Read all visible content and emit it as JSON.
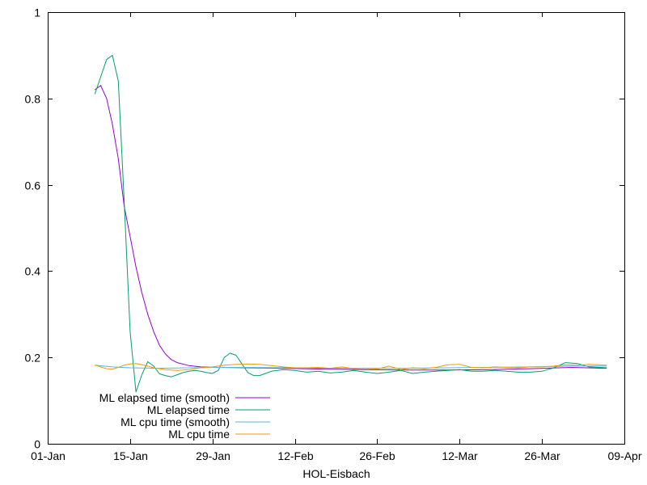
{
  "chart_data": {
    "type": "line",
    "title": "",
    "xlabel": "HOL-Eisbach",
    "ylabel": "",
    "x_ticks": [
      "01-Jan",
      "15-Jan",
      "29-Jan",
      "12-Feb",
      "26-Feb",
      "12-Mar",
      "26-Mar",
      "09-Apr"
    ],
    "y_ticks": [
      "0",
      "0.2",
      "0.4",
      "0.6",
      "0.8",
      "1"
    ],
    "xlim": [
      "2023-01-01",
      "2023-04-09"
    ],
    "ylim": [
      0,
      1
    ],
    "grid": false,
    "legend_position": "bottom-left",
    "series": [
      {
        "name": "ML elapsed time (smooth)",
        "color": "#9400d3",
        "points": [
          [
            "2023-01-09",
            0.82
          ],
          [
            "2023-01-10",
            0.83
          ],
          [
            "2023-01-11",
            0.8
          ],
          [
            "2023-01-12",
            0.74
          ],
          [
            "2023-01-13",
            0.66
          ],
          [
            "2023-01-14",
            0.55
          ],
          [
            "2023-01-15",
            0.48
          ],
          [
            "2023-01-16",
            0.41
          ],
          [
            "2023-01-17",
            0.35
          ],
          [
            "2023-01-18",
            0.3
          ],
          [
            "2023-01-19",
            0.26
          ],
          [
            "2023-01-20",
            0.228
          ],
          [
            "2023-01-21",
            0.208
          ],
          [
            "2023-01-22",
            0.195
          ],
          [
            "2023-01-23",
            0.188
          ],
          [
            "2023-01-25",
            0.181
          ],
          [
            "2023-01-27",
            0.178
          ],
          [
            "2023-01-30",
            0.177
          ],
          [
            "2023-02-04",
            0.176
          ],
          [
            "2023-02-10",
            0.175
          ],
          [
            "2023-02-17",
            0.173
          ],
          [
            "2023-02-24",
            0.172
          ],
          [
            "2023-03-03",
            0.171
          ],
          [
            "2023-03-10",
            0.171
          ],
          [
            "2023-03-17",
            0.172
          ],
          [
            "2023-03-24",
            0.174
          ],
          [
            "2023-03-31",
            0.177
          ],
          [
            "2023-04-06",
            0.175
          ]
        ]
      },
      {
        "name": "ML elapsed time",
        "color": "#009e73",
        "points": [
          [
            "2023-01-09",
            0.81
          ],
          [
            "2023-01-10",
            0.85
          ],
          [
            "2023-01-11",
            0.89
          ],
          [
            "2023-01-12",
            0.9
          ],
          [
            "2023-01-13",
            0.84
          ],
          [
            "2023-01-14",
            0.56
          ],
          [
            "2023-01-15",
            0.26
          ],
          [
            "2023-01-16",
            0.12
          ],
          [
            "2023-01-17",
            0.16
          ],
          [
            "2023-01-18",
            0.19
          ],
          [
            "2023-01-19",
            0.18
          ],
          [
            "2023-01-20",
            0.162
          ],
          [
            "2023-01-21",
            0.158
          ],
          [
            "2023-01-22",
            0.155
          ],
          [
            "2023-01-23",
            0.16
          ],
          [
            "2023-01-24",
            0.165
          ],
          [
            "2023-01-25",
            0.168
          ],
          [
            "2023-01-26",
            0.17
          ],
          [
            "2023-01-27",
            0.168
          ],
          [
            "2023-01-28",
            0.165
          ],
          [
            "2023-01-29",
            0.163
          ],
          [
            "2023-01-30",
            0.17
          ],
          [
            "2023-01-31",
            0.2
          ],
          [
            "2023-02-01",
            0.21
          ],
          [
            "2023-02-02",
            0.205
          ],
          [
            "2023-02-03",
            0.185
          ],
          [
            "2023-02-04",
            0.165
          ],
          [
            "2023-02-05",
            0.158
          ],
          [
            "2023-02-06",
            0.158
          ],
          [
            "2023-02-07",
            0.163
          ],
          [
            "2023-02-08",
            0.168
          ],
          [
            "2023-02-10",
            0.172
          ],
          [
            "2023-02-12",
            0.17
          ],
          [
            "2023-02-14",
            0.166
          ],
          [
            "2023-02-16",
            0.168
          ],
          [
            "2023-02-18",
            0.164
          ],
          [
            "2023-02-20",
            0.166
          ],
          [
            "2023-02-22",
            0.17
          ],
          [
            "2023-02-24",
            0.166
          ],
          [
            "2023-02-26",
            0.163
          ],
          [
            "2023-02-28",
            0.166
          ],
          [
            "2023-03-02",
            0.17
          ],
          [
            "2023-03-04",
            0.163
          ],
          [
            "2023-03-06",
            0.166
          ],
          [
            "2023-03-08",
            0.168
          ],
          [
            "2023-03-10",
            0.17
          ],
          [
            "2023-03-12",
            0.172
          ],
          [
            "2023-03-14",
            0.168
          ],
          [
            "2023-03-16",
            0.168
          ],
          [
            "2023-03-18",
            0.17
          ],
          [
            "2023-03-20",
            0.168
          ],
          [
            "2023-03-22",
            0.166
          ],
          [
            "2023-03-24",
            0.166
          ],
          [
            "2023-03-26",
            0.168
          ],
          [
            "2023-03-28",
            0.176
          ],
          [
            "2023-03-30",
            0.188
          ],
          [
            "2023-04-01",
            0.186
          ],
          [
            "2023-04-03",
            0.178
          ],
          [
            "2023-04-06",
            0.176
          ]
        ]
      },
      {
        "name": "ML cpu time (smooth)",
        "color": "#56b4e9",
        "points": [
          [
            "2023-01-09",
            0.182
          ],
          [
            "2023-01-12",
            0.178
          ],
          [
            "2023-01-15",
            0.176
          ],
          [
            "2023-01-20",
            0.175
          ],
          [
            "2023-01-25",
            0.176
          ],
          [
            "2023-01-30",
            0.177
          ],
          [
            "2023-02-04",
            0.177
          ],
          [
            "2023-02-10",
            0.176
          ],
          [
            "2023-02-17",
            0.175
          ],
          [
            "2023-02-24",
            0.175
          ],
          [
            "2023-03-03",
            0.175
          ],
          [
            "2023-03-10",
            0.176
          ],
          [
            "2023-03-17",
            0.177
          ],
          [
            "2023-03-24",
            0.178
          ],
          [
            "2023-03-31",
            0.18
          ],
          [
            "2023-04-06",
            0.18
          ]
        ]
      },
      {
        "name": "ML cpu time",
        "color": "#e69f00",
        "points": [
          [
            "2023-01-09",
            0.182
          ],
          [
            "2023-01-10",
            0.178
          ],
          [
            "2023-01-11",
            0.174
          ],
          [
            "2023-01-12",
            0.173
          ],
          [
            "2023-01-13",
            0.177
          ],
          [
            "2023-01-14",
            0.182
          ],
          [
            "2023-01-15",
            0.185
          ],
          [
            "2023-01-16",
            0.186
          ],
          [
            "2023-01-17",
            0.183
          ],
          [
            "2023-01-18",
            0.18
          ],
          [
            "2023-01-19",
            0.176
          ],
          [
            "2023-01-21",
            0.172
          ],
          [
            "2023-01-23",
            0.17
          ],
          [
            "2023-01-25",
            0.172
          ],
          [
            "2023-01-27",
            0.176
          ],
          [
            "2023-01-29",
            0.178
          ],
          [
            "2023-01-31",
            0.182
          ],
          [
            "2023-02-02",
            0.184
          ],
          [
            "2023-02-04",
            0.185
          ],
          [
            "2023-02-06",
            0.184
          ],
          [
            "2023-02-08",
            0.181
          ],
          [
            "2023-02-10",
            0.178
          ],
          [
            "2023-02-12",
            0.176
          ],
          [
            "2023-02-14",
            0.176
          ],
          [
            "2023-02-16",
            0.177
          ],
          [
            "2023-02-18",
            0.175
          ],
          [
            "2023-02-20",
            0.178
          ],
          [
            "2023-02-22",
            0.174
          ],
          [
            "2023-02-24",
            0.175
          ],
          [
            "2023-02-26",
            0.173
          ],
          [
            "2023-02-28",
            0.18
          ],
          [
            "2023-03-02",
            0.172
          ],
          [
            "2023-03-04",
            0.176
          ],
          [
            "2023-03-06",
            0.174
          ],
          [
            "2023-03-08",
            0.177
          ],
          [
            "2023-03-10",
            0.183
          ],
          [
            "2023-03-12",
            0.184
          ],
          [
            "2023-03-14",
            0.177
          ],
          [
            "2023-03-16",
            0.176
          ],
          [
            "2023-03-18",
            0.178
          ],
          [
            "2023-03-20",
            0.177
          ],
          [
            "2023-03-22",
            0.176
          ],
          [
            "2023-03-24",
            0.178
          ],
          [
            "2023-03-26",
            0.178
          ],
          [
            "2023-03-28",
            0.18
          ],
          [
            "2023-03-30",
            0.183
          ],
          [
            "2023-04-01",
            0.182
          ],
          [
            "2023-04-03",
            0.184
          ],
          [
            "2023-04-06",
            0.182
          ]
        ]
      }
    ]
  }
}
